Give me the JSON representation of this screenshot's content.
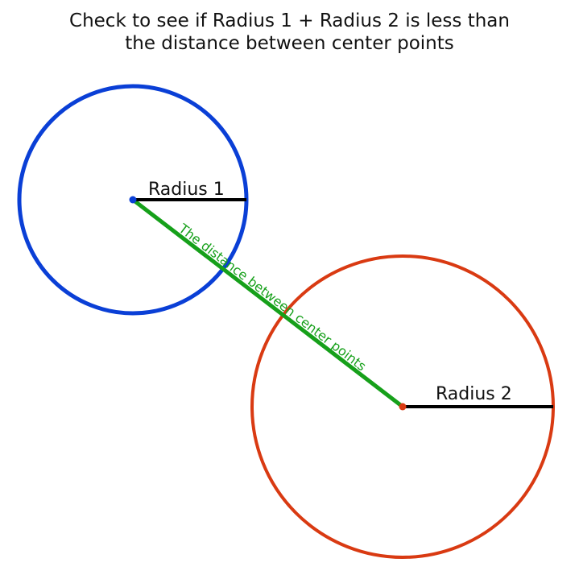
{
  "title_line1": "Check to see if Radius 1 + Radius 2 is less than",
  "title_line2": "the distance between center points",
  "radius1_label": "Radius 1",
  "radius2_label": "Radius 2",
  "distance_label": "The distance between center points",
  "colors": {
    "circle1": "#0a3fd6",
    "circle2": "#d93a12",
    "distance": "#16a01a",
    "radius": "#000000"
  }
}
